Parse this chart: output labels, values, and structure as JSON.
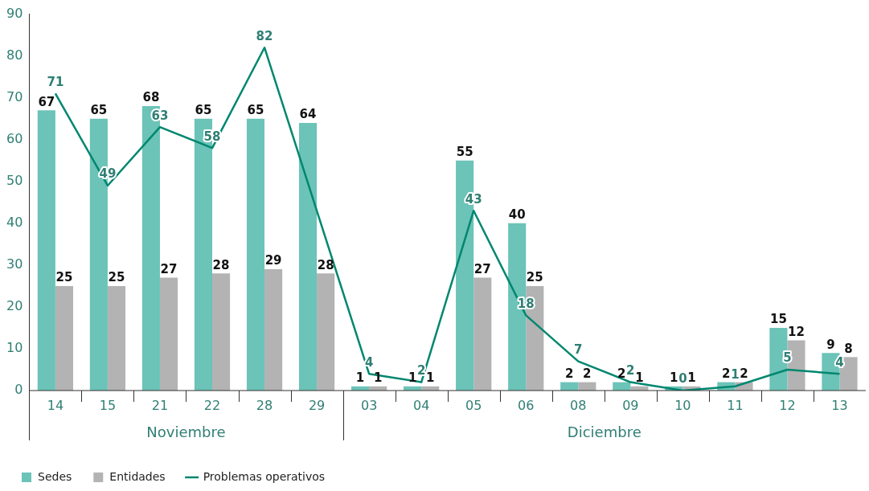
{
  "chart_data": {
    "type": "bar",
    "categories": [
      "14",
      "15",
      "21",
      "22",
      "28",
      "29",
      "03",
      "04",
      "05",
      "06",
      "08",
      "09",
      "10",
      "11",
      "12",
      "13"
    ],
    "series": [
      {
        "name": "Sedes",
        "color": "#6cc3b8",
        "values": [
          67,
          65,
          68,
          65,
          65,
          64,
          1,
          1,
          55,
          40,
          2,
          2,
          1,
          2,
          15,
          9
        ]
      },
      {
        "name": "Entidades",
        "color": "#b3b3b3",
        "values": [
          25,
          25,
          27,
          28,
          29,
          28,
          1,
          1,
          27,
          25,
          2,
          1,
          1,
          2,
          12,
          8
        ]
      },
      {
        "name": "Problemas operativos",
        "type": "line",
        "color": "#00876f",
        "values": [
          71,
          49,
          63,
          58,
          82,
          null,
          4,
          2,
          43,
          18,
          7,
          2,
          0,
          1,
          5,
          4
        ]
      }
    ],
    "annotations": [
      "Noviembre",
      "Diciembre"
    ],
    "ylim": [
      0,
      90
    ],
    "yticks": [
      0,
      10,
      20,
      30,
      40,
      50,
      60,
      70,
      80,
      90
    ],
    "grid": false,
    "legend": "bottom left",
    "data_labels": true,
    "marker": "none"
  }
}
